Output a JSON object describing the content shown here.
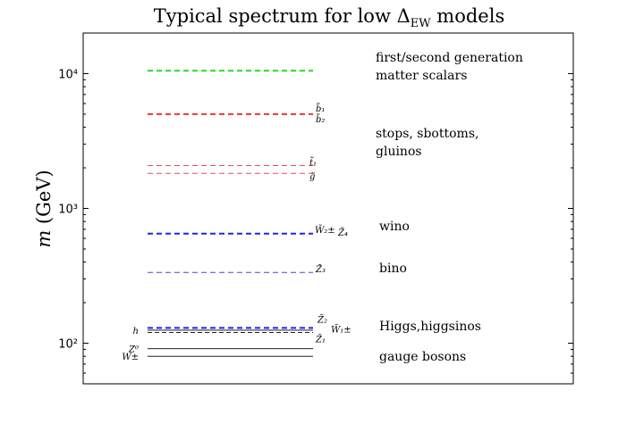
{
  "chart_data": {
    "type": "spectrum",
    "title": "Typical spectrum for low ΔEW models",
    "ylabel": "m (GeV)",
    "yscale": "log",
    "ylim": [
      50,
      20000
    ],
    "ytick_values": [
      100,
      1000,
      10000
    ],
    "ytick_labels": [
      "10²",
      "10³",
      "10⁴"
    ],
    "levels": [
      {
        "name": "first/second generation matter scalars",
        "value": 10500,
        "color": "#22dd22",
        "style": "dashed-bold",
        "labels": []
      },
      {
        "name": "b̃₁",
        "value": 5000,
        "color": "#ee3333",
        "style": "dashed-bold",
        "labels": [
          "b̃₁",
          "b̃₂"
        ]
      },
      {
        "name": "t̃₁",
        "value": 2080,
        "color": "#dd5555",
        "style": "dashed",
        "labels": [
          "t̃₁"
        ]
      },
      {
        "name": "g̃",
        "value": 1820,
        "color": "#dd5555",
        "style": "dashed",
        "labels": [
          "g̃"
        ]
      },
      {
        "name": "W̃₂± Z̃₄",
        "value": 650,
        "color": "#2222ee",
        "style": "dashed-bold",
        "labels": [
          "W̃₂±",
          "Z̃₄"
        ]
      },
      {
        "name": "Z̃₃",
        "value": 335,
        "color": "#4444dd",
        "style": "dashed",
        "labels": [
          "Z̃₃"
        ]
      },
      {
        "name": "Z̃₂",
        "value": 130,
        "color": "#2222ee",
        "style": "dashed-bold",
        "labels": [
          "Z̃₂",
          "W̃₁±"
        ]
      },
      {
        "name": "h",
        "value": 125,
        "color": "#000000",
        "style": "solid",
        "labels": [
          "h"
        ]
      },
      {
        "name": "Z̃₁",
        "value": 120,
        "color": "#000000",
        "style": "dashed-thin",
        "labels": [
          "Z̃₁"
        ]
      },
      {
        "name": "Z⁰",
        "value": 91,
        "color": "#000000",
        "style": "solid",
        "labels": [
          "Z⁰"
        ]
      },
      {
        "name": "W±",
        "value": 80,
        "color": "#000000",
        "style": "solid",
        "labels": [
          "W±"
        ]
      }
    ],
    "group_labels": [
      {
        "lines": [
          "first/second generation",
          "matter scalars"
        ]
      },
      {
        "lines": [
          "stops, sbottoms,",
          "gluinos"
        ]
      },
      {
        "lines": [
          "wino"
        ]
      },
      {
        "lines": [
          "bino"
        ]
      },
      {
        "lines": [
          "Higgs,higgsinos"
        ]
      },
      {
        "lines": [
          "gauge bosons"
        ]
      }
    ]
  }
}
